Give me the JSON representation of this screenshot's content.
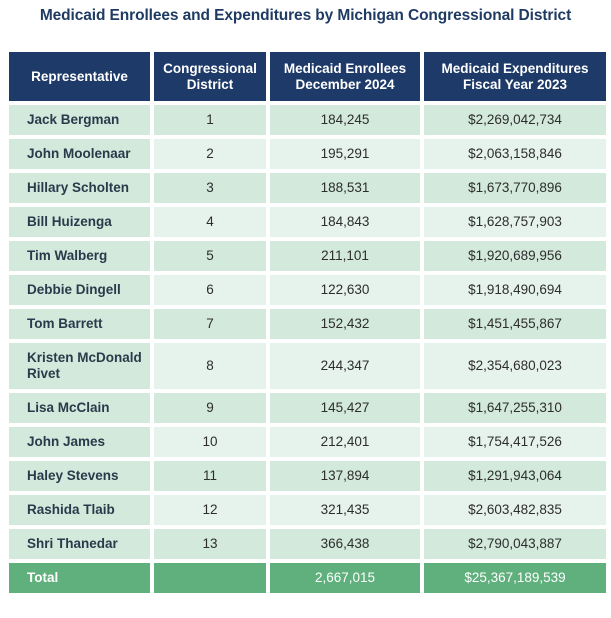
{
  "title": "Medicaid Enrollees and Expenditures by Michigan Congressional District",
  "headers": {
    "representative": "Representative",
    "district": "Congressional District",
    "enrollees": "Medicaid Enrollees December 2024",
    "expenditures": "Medicaid Expenditures Fiscal Year 2023"
  },
  "rows": [
    {
      "rep": "Jack Bergman",
      "district": "1",
      "enrollees": "184,245",
      "expenditures": "$2,269,042,734"
    },
    {
      "rep": "John Moolenaar",
      "district": "2",
      "enrollees": "195,291",
      "expenditures": "$2,063,158,846"
    },
    {
      "rep": "Hillary Scholten",
      "district": "3",
      "enrollees": "188,531",
      "expenditures": "$1,673,770,896"
    },
    {
      "rep": "Bill Huizenga",
      "district": "4",
      "enrollees": "184,843",
      "expenditures": "$1,628,757,903"
    },
    {
      "rep": "Tim Walberg",
      "district": "5",
      "enrollees": "211,101",
      "expenditures": "$1,920,689,956"
    },
    {
      "rep": "Debbie Dingell",
      "district": "6",
      "enrollees": "122,630",
      "expenditures": "$1,918,490,694"
    },
    {
      "rep": "Tom Barrett",
      "district": "7",
      "enrollees": "152,432",
      "expenditures": "$1,451,455,867"
    },
    {
      "rep": "Kristen McDonald Rivet",
      "district": "8",
      "enrollees": "244,347",
      "expenditures": "$2,354,680,023"
    },
    {
      "rep": "Lisa McClain",
      "district": "9",
      "enrollees": "145,427",
      "expenditures": "$1,647,255,310"
    },
    {
      "rep": "John James",
      "district": "10",
      "enrollees": "212,401",
      "expenditures": "$1,754,417,526"
    },
    {
      "rep": "Haley Stevens",
      "district": "11",
      "enrollees": "137,894",
      "expenditures": "$1,291,943,064"
    },
    {
      "rep": "Rashida Tlaib",
      "district": "12",
      "enrollees": "321,435",
      "expenditures": "$2,603,482,835"
    },
    {
      "rep": "Shri Thanedar",
      "district": "13",
      "enrollees": "366,438",
      "expenditures": "$2,790,043,887"
    }
  ],
  "total": {
    "label": "Total",
    "district": "",
    "enrollees": "2,667,015",
    "expenditures": "$25,367,189,539"
  },
  "colors": {
    "header_bg": "#1e3a68",
    "title_text": "#1f3b63",
    "row_light": "#e6f3ec",
    "row_dark": "#d2e9dc",
    "total_bg": "#5fb07c"
  }
}
